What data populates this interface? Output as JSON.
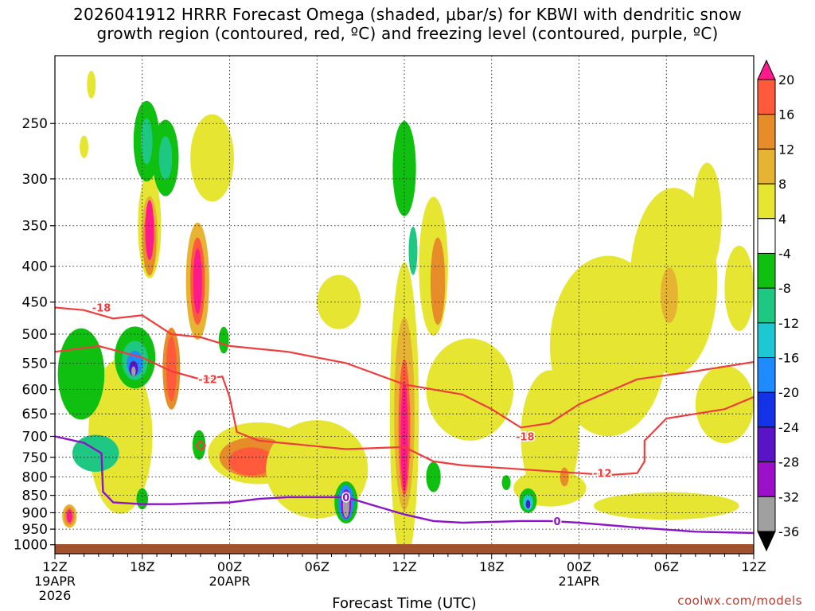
{
  "title": {
    "line1": "2026041912 HRRR Forecast Omega (shaded, μbar/s) for KBWI with dendritic snow",
    "line2": "growth region (contoured, red, ºC) and freezing level (contoured, purple, ºC)"
  },
  "credit": "coolwx.com/models",
  "chart_data": {
    "type": "heatmap",
    "title": "2026041912 HRRR Forecast Omega (shaded, μbar/s) for KBWI with dendritic snow growth region (contoured, red, ºC) and freezing level (contoured, purple, ºC)",
    "xlabel": "Forecast Time (UTC)",
    "ylabel": "",
    "xlim": [
      0,
      48
    ],
    "ylim": [
      1030,
      200
    ],
    "y_scale": "log",
    "x_ticks": [
      {
        "x": 0,
        "label": "12Z",
        "date": "19APR",
        "year": "2026"
      },
      {
        "x": 6,
        "label": "18Z"
      },
      {
        "x": 12,
        "label": "00Z",
        "date": "20APR"
      },
      {
        "x": 18,
        "label": "06Z"
      },
      {
        "x": 24,
        "label": "12Z"
      },
      {
        "x": 30,
        "label": "18Z"
      },
      {
        "x": 36,
        "label": "00Z",
        "date": "21APR"
      },
      {
        "x": 42,
        "label": "06Z"
      },
      {
        "x": 48,
        "label": "12Z"
      }
    ],
    "y_ticks": [
      250,
      300,
      350,
      400,
      450,
      500,
      550,
      600,
      650,
      700,
      750,
      800,
      850,
      900,
      950,
      1000
    ],
    "grid": true,
    "colorbar": {
      "levels": [
        -36,
        -32,
        -28,
        -24,
        -20,
        -16,
        -12,
        -8,
        -4,
        4,
        8,
        12,
        16,
        20
      ],
      "colors": [
        "#000000",
        "#a0a0a0",
        "#9b10c8",
        "#5a14c8",
        "#1432e6",
        "#1e8cff",
        "#1ec8d2",
        "#1ec882",
        "#10c010",
        "#ffffff",
        "#e6e632",
        "#e6b432",
        "#e68c28",
        "#ff5a3c",
        "#ff1a8c"
      ]
    },
    "omega_regions": [
      {
        "x": 1.8,
        "p": 570,
        "dx": 1.6,
        "dp": 170,
        "value": -8
      },
      {
        "x": 2.8,
        "p": 740,
        "dx": 1.6,
        "dp": 90,
        "value": -12
      },
      {
        "x": 5.5,
        "p": 540,
        "dx": 1.4,
        "dp": 110,
        "value": -8
      },
      {
        "x": 5.5,
        "p": 545,
        "dx": 0.9,
        "dp": 70,
        "value": -12
      },
      {
        "x": 5.5,
        "p": 550,
        "dx": 0.55,
        "dp": 45,
        "value": -20
      },
      {
        "x": 5.4,
        "p": 560,
        "dx": 0.3,
        "dp": 28,
        "value": -28
      },
      {
        "x": 5.4,
        "p": 565,
        "dx": 0.15,
        "dp": 18,
        "value": -36
      },
      {
        "x": 6.3,
        "p": 265,
        "dx": 0.9,
        "dp": 70,
        "value": -8
      },
      {
        "x": 6.3,
        "p": 265,
        "dx": 0.4,
        "dp": 40,
        "value": -12
      },
      {
        "x": 7.6,
        "p": 280,
        "dx": 0.9,
        "dp": 70,
        "value": -8
      },
      {
        "x": 7.6,
        "p": 280,
        "dx": 0.45,
        "dp": 40,
        "value": -12
      },
      {
        "x": 6.0,
        "p": 860,
        "dx": 0.4,
        "dp": 60,
        "value": -8
      },
      {
        "x": 9.9,
        "p": 720,
        "dx": 0.45,
        "dp": 70,
        "value": -8
      },
      {
        "x": 11.6,
        "p": 510,
        "dx": 0.35,
        "dp": 45,
        "value": -8
      },
      {
        "x": 24.0,
        "p": 290,
        "dx": 0.8,
        "dp": 90,
        "value": -8
      },
      {
        "x": 24.6,
        "p": 380,
        "dx": 0.3,
        "dp": 60,
        "value": -12
      },
      {
        "x": 26.0,
        "p": 800,
        "dx": 0.5,
        "dp": 80,
        "value": -8
      },
      {
        "x": 20.0,
        "p": 870,
        "dx": 0.8,
        "dp": 120,
        "value": -8
      },
      {
        "x": 20.0,
        "p": 870,
        "dx": 0.55,
        "dp": 100,
        "value": -20
      },
      {
        "x": 20.0,
        "p": 875,
        "dx": 0.35,
        "dp": 85,
        "value": -32
      },
      {
        "x": 20.0,
        "p": 880,
        "dx": 0.22,
        "dp": 70,
        "value": -36
      },
      {
        "x": 32.5,
        "p": 865,
        "dx": 0.6,
        "dp": 70,
        "value": -8
      },
      {
        "x": 32.5,
        "p": 870,
        "dx": 0.35,
        "dp": 45,
        "value": -16
      },
      {
        "x": 32.5,
        "p": 875,
        "dx": 0.15,
        "dp": 25,
        "value": -28
      },
      {
        "x": 31.0,
        "p": 815,
        "dx": 0.3,
        "dp": 40,
        "value": -8
      }
    ],
    "upward_regions": [
      {
        "x": 4.5,
        "p": 700,
        "dx": 2.2,
        "dp": 350,
        "value": 4
      },
      {
        "x": 6.5,
        "p": 350,
        "dx": 0.8,
        "dp": 120,
        "value": 4
      },
      {
        "x": 6.5,
        "p": 360,
        "dx": 0.55,
        "dp": 90,
        "value": 8
      },
      {
        "x": 6.5,
        "p": 370,
        "dx": 0.45,
        "dp": 80,
        "value": 12
      },
      {
        "x": 6.5,
        "p": 355,
        "dx": 0.3,
        "dp": 70,
        "value": 20
      },
      {
        "x": 1.0,
        "p": 910,
        "dx": 0.5,
        "dp": 70,
        "value": 8
      },
      {
        "x": 1.0,
        "p": 910,
        "dx": 0.35,
        "dp": 55,
        "value": 12
      },
      {
        "x": 1.0,
        "p": 910,
        "dx": 0.2,
        "dp": 40,
        "value": 20
      },
      {
        "x": 8.0,
        "p": 560,
        "dx": 0.6,
        "dp": 150,
        "value": 12
      },
      {
        "x": 8.0,
        "p": 560,
        "dx": 0.35,
        "dp": 120,
        "value": 16
      },
      {
        "x": 9.8,
        "p": 420,
        "dx": 0.8,
        "dp": 160,
        "value": 8
      },
      {
        "x": 9.8,
        "p": 420,
        "dx": 0.5,
        "dp": 120,
        "value": 16
      },
      {
        "x": 9.8,
        "p": 420,
        "dx": 0.3,
        "dp": 90,
        "value": 20
      },
      {
        "x": 10.8,
        "p": 280,
        "dx": 1.5,
        "dp": 80,
        "value": 4
      },
      {
        "x": 14.0,
        "p": 740,
        "dx": 3.5,
        "dp": 150,
        "value": 4
      },
      {
        "x": 13.8,
        "p": 750,
        "dx": 2.5,
        "dp": 100,
        "value": 12
      },
      {
        "x": 13.5,
        "p": 760,
        "dx": 1.6,
        "dp": 70,
        "value": 16
      },
      {
        "x": 24.0,
        "p": 650,
        "dx": 1.0,
        "dp": 600,
        "value": 4
      },
      {
        "x": 24.0,
        "p": 650,
        "dx": 0.7,
        "dp": 400,
        "value": 8
      },
      {
        "x": 24.0,
        "p": 680,
        "dx": 0.4,
        "dp": 300,
        "value": 16
      },
      {
        "x": 24.0,
        "p": 700,
        "dx": 0.25,
        "dp": 250,
        "value": 20
      },
      {
        "x": 26.0,
        "p": 400,
        "dx": 1.0,
        "dp": 180,
        "value": 4
      },
      {
        "x": 26.3,
        "p": 420,
        "dx": 0.5,
        "dp": 120,
        "value": 12
      },
      {
        "x": 28.5,
        "p": 600,
        "dx": 3.0,
        "dp": 200,
        "value": 4
      },
      {
        "x": 18.0,
        "p": 780,
        "dx": 3.5,
        "dp": 250,
        "value": 4
      },
      {
        "x": 34.0,
        "p": 700,
        "dx": 2.0,
        "dp": 300,
        "value": 4
      },
      {
        "x": 38.0,
        "p": 520,
        "dx": 4.0,
        "dp": 300,
        "value": 4
      },
      {
        "x": 42.5,
        "p": 420,
        "dx": 3.0,
        "dp": 250,
        "value": 4
      },
      {
        "x": 42.2,
        "p": 440,
        "dx": 0.6,
        "dp": 80,
        "value": 8
      },
      {
        "x": 44.8,
        "p": 340,
        "dx": 1.0,
        "dp": 120,
        "value": 4
      },
      {
        "x": 47.0,
        "p": 430,
        "dx": 1.0,
        "dp": 120,
        "value": 4
      },
      {
        "x": 46.0,
        "p": 630,
        "dx": 2.0,
        "dp": 160,
        "value": 4
      },
      {
        "x": 34.0,
        "p": 830,
        "dx": 2.5,
        "dp": 100,
        "value": 4
      },
      {
        "x": 35.0,
        "p": 800,
        "dx": 0.3,
        "dp": 50,
        "value": 12
      },
      {
        "x": 2.5,
        "p": 220,
        "dx": 0.3,
        "dp": 20,
        "value": 4
      },
      {
        "x": 2.0,
        "p": 270,
        "dx": 0.3,
        "dp": 20,
        "value": 4
      },
      {
        "x": 19.5,
        "p": 450,
        "dx": 1.5,
        "dp": 80,
        "value": 4
      },
      {
        "x": 42.0,
        "p": 880,
        "dx": 5.0,
        "dp": 80,
        "value": 4
      }
    ],
    "dgz_contours": [
      {
        "label": "-18",
        "points": [
          [
            0,
            458
          ],
          [
            2,
            462
          ],
          [
            4,
            475
          ],
          [
            6,
            470
          ],
          [
            8,
            500
          ],
          [
            10,
            505
          ],
          [
            12,
            520
          ],
          [
            16,
            530
          ],
          [
            20,
            550
          ],
          [
            24,
            590
          ],
          [
            28,
            610
          ],
          [
            30,
            640
          ],
          [
            32,
            680
          ],
          [
            34,
            670
          ],
          [
            36,
            630
          ],
          [
            40,
            580
          ],
          [
            44,
            565
          ],
          [
            48,
            548
          ]
        ]
      },
      {
        "label": "-12",
        "points": [
          [
            0,
            530
          ],
          [
            3,
            520
          ],
          [
            6,
            540
          ],
          [
            8,
            565
          ],
          [
            10,
            580
          ],
          [
            11.5,
            575
          ],
          [
            12,
            615
          ],
          [
            12.5,
            690
          ],
          [
            14,
            710
          ],
          [
            20,
            730
          ],
          [
            24,
            725
          ],
          [
            26,
            760
          ],
          [
            28,
            770
          ],
          [
            32,
            780
          ],
          [
            34,
            785
          ],
          [
            36,
            790
          ],
          [
            38,
            795
          ],
          [
            40,
            790
          ],
          [
            40.5,
            760
          ],
          [
            40.5,
            710
          ],
          [
            42,
            660
          ],
          [
            46,
            640
          ],
          [
            48,
            615
          ]
        ]
      }
    ],
    "freezing_level": {
      "label": "0",
      "points": [
        [
          0,
          700
        ],
        [
          2,
          715
        ],
        [
          3.2,
          740
        ],
        [
          3.3,
          840
        ],
        [
          4,
          870
        ],
        [
          6,
          875
        ],
        [
          8,
          875
        ],
        [
          12,
          870
        ],
        [
          14,
          860
        ],
        [
          16,
          855
        ],
        [
          20,
          855
        ],
        [
          22,
          880
        ],
        [
          24,
          905
        ],
        [
          26,
          925
        ],
        [
          28,
          930
        ],
        [
          32,
          925
        ],
        [
          34,
          925
        ],
        [
          36,
          930
        ],
        [
          40,
          945
        ],
        [
          44,
          958
        ],
        [
          48,
          962
        ]
      ]
    },
    "dgz_label_positions": [
      {
        "label": "-18",
        "x": 3.2,
        "p": 458
      },
      {
        "label": "-12",
        "x": 10.5,
        "p": 580
      },
      {
        "label": "-18",
        "x": 32.3,
        "p": 700
      },
      {
        "label": "-12",
        "x": 37.6,
        "p": 790
      },
      {
        "label": "0",
        "x": 20.0,
        "p": 855
      },
      {
        "label": "0",
        "x": 34.5,
        "p": 925
      }
    ]
  }
}
